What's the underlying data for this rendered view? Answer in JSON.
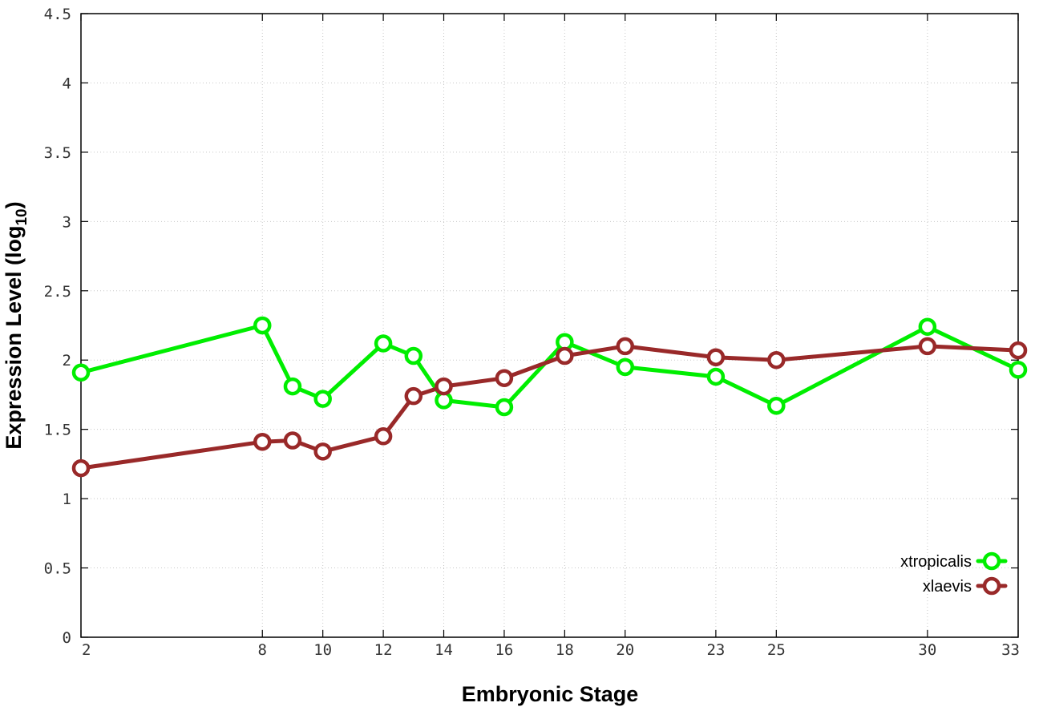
{
  "chart_data": {
    "type": "line",
    "title": "",
    "xlabel": "Embryonic Stage",
    "ylabel_main": "Expression Level (log",
    "ylabel_sub": "10",
    "ylabel_close": ")",
    "xlim": [
      2,
      33
    ],
    "ylim": [
      0,
      4.5
    ],
    "x_ticks": [
      2,
      8,
      10,
      12,
      14,
      16,
      18,
      20,
      23,
      25,
      30,
      33
    ],
    "y_ticks": [
      0,
      0.5,
      1,
      1.5,
      2,
      2.5,
      3,
      3.5,
      4,
      4.5
    ],
    "y_tick_labels": [
      "0",
      "0.5",
      "1",
      "1.5",
      "2",
      "2.5",
      "3",
      "3.5",
      "4",
      "4.5"
    ],
    "grid": true,
    "legend_position": "bottom-right",
    "series": [
      {
        "name": "xtropicalis",
        "color": "#00ee00",
        "x": [
          2,
          8,
          9,
          10,
          12,
          13,
          14,
          16,
          18,
          20,
          23,
          25,
          30,
          33
        ],
        "y": [
          1.91,
          2.25,
          1.81,
          1.72,
          2.12,
          2.03,
          1.71,
          1.66,
          2.13,
          1.95,
          1.88,
          1.67,
          2.24,
          1.93
        ]
      },
      {
        "name": "xlaevis",
        "color": "#992929",
        "x": [
          2,
          8,
          9,
          10,
          12,
          13,
          14,
          16,
          18,
          20,
          23,
          25,
          30,
          33
        ],
        "y": [
          1.22,
          1.41,
          1.42,
          1.34,
          1.45,
          1.74,
          1.81,
          1.87,
          2.03,
          2.1,
          2.02,
          2.0,
          2.1,
          2.07
        ]
      }
    ]
  }
}
